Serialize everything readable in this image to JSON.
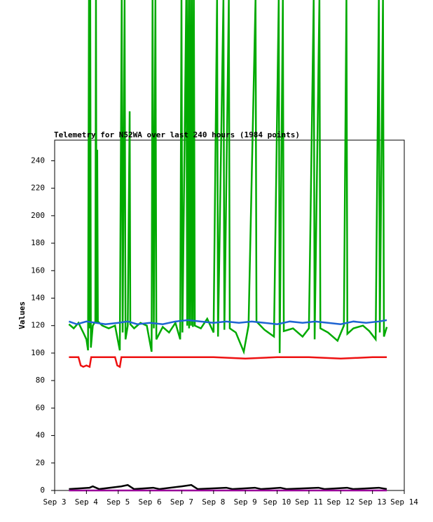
{
  "chart_data": {
    "type": "line",
    "title": "Telemetry for N52WA over last 240 hours (1984 points)",
    "y_label": "Values",
    "xlim": [
      3,
      14
    ],
    "xticks": [
      {
        "value": 3,
        "label": "Sep 3"
      },
      {
        "value": 4,
        "label": "Sep 4"
      },
      {
        "value": 5,
        "label": "Sep 5"
      },
      {
        "value": 6,
        "label": "Sep 6"
      },
      {
        "value": 7,
        "label": "Sep 7"
      },
      {
        "value": 8,
        "label": "Sep 8"
      },
      {
        "value": 9,
        "label": "Sep 9"
      },
      {
        "value": 10,
        "label": "Sep 10"
      },
      {
        "value": 11,
        "label": "Sep 11"
      },
      {
        "value": 12,
        "label": "Sep 12"
      },
      {
        "value": 13,
        "label": "Sep 13"
      },
      {
        "value": 14,
        "label": "Sep 14"
      }
    ],
    "ylim": [
      0,
      255
    ],
    "yticks": [
      0,
      20,
      40,
      60,
      80,
      100,
      120,
      140,
      160,
      180,
      200,
      220,
      240
    ],
    "series": [
      {
        "color": "#00aa00",
        "x": [
          3.45,
          3.6,
          3.75,
          3.9,
          4.0,
          4.05,
          4.08,
          4.1,
          4.12,
          4.14,
          4.2,
          4.28,
          4.3,
          4.32,
          4.34,
          4.36,
          4.5,
          4.7,
          4.9,
          5.05,
          5.11,
          5.14,
          5.2,
          5.23,
          5.3,
          5.36,
          5.38,
          5.5,
          5.7,
          5.9,
          6.05,
          6.08,
          6.12,
          6.17,
          6.2,
          6.4,
          6.6,
          6.8,
          6.95,
          6.99,
          7.02,
          7.14,
          7.17,
          7.2,
          7.23,
          7.26,
          7.29,
          7.32,
          7.35,
          7.38,
          7.41,
          7.6,
          7.8,
          8.0,
          8.11,
          8.14,
          8.31,
          8.34,
          8.48,
          8.51,
          8.7,
          8.95,
          9.1,
          9.32,
          9.35,
          9.6,
          9.9,
          10.05,
          10.08,
          10.18,
          10.21,
          10.5,
          10.8,
          11.0,
          11.15,
          11.18,
          11.33,
          11.36,
          11.6,
          11.9,
          12.1,
          12.18,
          12.21,
          12.4,
          12.7,
          12.9,
          13.1,
          13.2,
          13.23,
          13.33,
          13.36,
          13.45
        ],
        "values": [
          121,
          118,
          122,
          115,
          110,
          102,
          357,
          118,
          357,
          104,
          120,
          123,
          357,
          122,
          248,
          123,
          120,
          118,
          120,
          102,
          357,
          115,
          357,
          110,
          120,
          276,
          121,
          118,
          122,
          120,
          101,
          357,
          118,
          357,
          110,
          119,
          115,
          122,
          110,
          357,
          115,
          357,
          120,
          357,
          118,
          357,
          120,
          357,
          119,
          357,
          120,
          118,
          125,
          115,
          357,
          112,
          357,
          117,
          357,
          118,
          115,
          101,
          120,
          357,
          123,
          117,
          112,
          357,
          100,
          357,
          116,
          118,
          112,
          118,
          357,
          110,
          357,
          118,
          115,
          109,
          120,
          357,
          114,
          118,
          120,
          116,
          110,
          357,
          115,
          357,
          112,
          119
        ]
      },
      {
        "color": "#1e64d2",
        "x": [
          3.45,
          3.7,
          4.0,
          4.3,
          4.6,
          5.0,
          5.3,
          5.6,
          6.0,
          6.4,
          6.8,
          7.2,
          7.6,
          8.0,
          8.4,
          8.8,
          9.2,
          9.6,
          10.0,
          10.4,
          10.8,
          11.2,
          11.6,
          12.0,
          12.4,
          12.8,
          13.2,
          13.45
        ],
        "values": [
          123,
          121,
          123,
          122,
          121,
          122,
          123,
          121,
          122,
          121,
          123,
          124,
          123,
          122,
          123,
          122,
          123,
          122,
          121,
          123,
          122,
          123,
          122,
          121,
          123,
          122,
          123,
          124
        ]
      },
      {
        "color": "#ee1111",
        "x": [
          3.45,
          3.75,
          3.82,
          3.9,
          4.0,
          4.1,
          4.15,
          4.9,
          4.97,
          5.05,
          5.1,
          6.0,
          7.0,
          8.0,
          9.0,
          10.0,
          11.0,
          12.0,
          13.0,
          13.45
        ],
        "values": [
          97,
          97,
          91,
          90,
          91,
          90,
          97,
          97,
          91,
          90,
          97,
          97,
          97,
          97,
          96,
          97,
          97,
          96,
          97,
          97
        ]
      },
      {
        "color": "#000000",
        "x": [
          3.45,
          4.1,
          4.2,
          4.4,
          5.1,
          5.3,
          5.5,
          6.1,
          6.3,
          7.0,
          7.3,
          7.5,
          8.4,
          8.6,
          9.3,
          9.5,
          10.1,
          10.3,
          11.3,
          11.5,
          12.2,
          12.4,
          13.2,
          13.45
        ],
        "values": [
          1,
          2,
          3,
          1,
          3,
          4,
          1,
          2,
          1,
          3,
          4,
          1,
          2,
          1,
          2,
          1,
          2,
          1,
          2,
          1,
          2,
          1,
          2,
          1
        ]
      },
      {
        "color": "#990099",
        "x": [
          3.45,
          13.45
        ],
        "values": [
          0,
          0
        ]
      }
    ]
  }
}
